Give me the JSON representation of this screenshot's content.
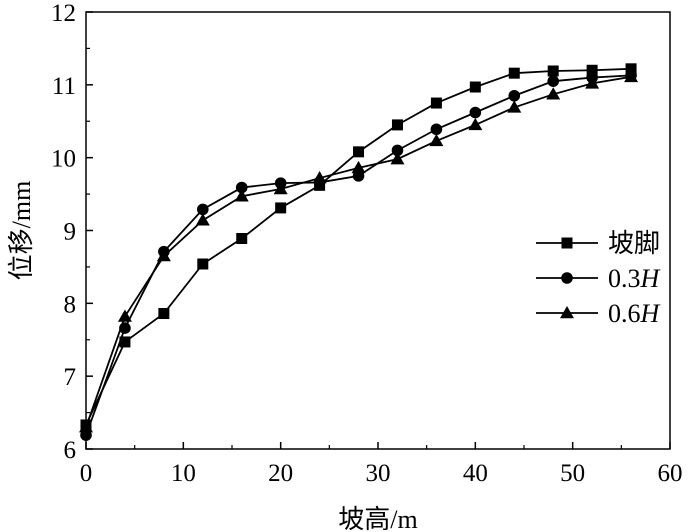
{
  "chart_data": {
    "type": "line",
    "title": "",
    "xlabel": "坡高/m",
    "ylabel": "位移/mm",
    "xlim": [
      0,
      60
    ],
    "ylim": [
      6,
      12
    ],
    "xticks": [
      0,
      10,
      20,
      30,
      40,
      50,
      60
    ],
    "yticks": [
      6,
      7,
      8,
      9,
      10,
      11,
      12
    ],
    "grid": false,
    "legend_position": "right",
    "series": [
      {
        "name": "坡脚",
        "name_italic": "",
        "marker": "square",
        "x": [
          0,
          4,
          8,
          12,
          16,
          20,
          24,
          28,
          32,
          36,
          40,
          44,
          48,
          52,
          56
        ],
        "y": [
          6.33,
          7.47,
          7.86,
          8.54,
          8.89,
          9.31,
          9.62,
          10.08,
          10.45,
          10.75,
          10.97,
          11.16,
          11.19,
          11.2,
          11.22
        ]
      },
      {
        "name": "0.3",
        "name_italic": "H",
        "marker": "circle",
        "x": [
          0,
          4,
          8,
          12,
          16,
          20,
          24,
          28,
          32,
          36,
          40,
          44,
          48,
          52,
          56
        ],
        "y": [
          6.19,
          7.66,
          8.71,
          9.29,
          9.59,
          9.65,
          9.66,
          9.75,
          10.1,
          10.39,
          10.62,
          10.85,
          11.05,
          11.1,
          11.13
        ]
      },
      {
        "name": "0.6",
        "name_italic": "H",
        "marker": "triangle",
        "x": [
          0,
          4,
          8,
          12,
          16,
          20,
          24,
          28,
          32,
          36,
          40,
          44,
          48,
          52,
          56
        ],
        "y": [
          6.3,
          7.82,
          8.65,
          9.14,
          9.47,
          9.57,
          9.72,
          9.86,
          9.98,
          10.23,
          10.45,
          10.69,
          10.87,
          11.02,
          11.11
        ]
      }
    ]
  }
}
